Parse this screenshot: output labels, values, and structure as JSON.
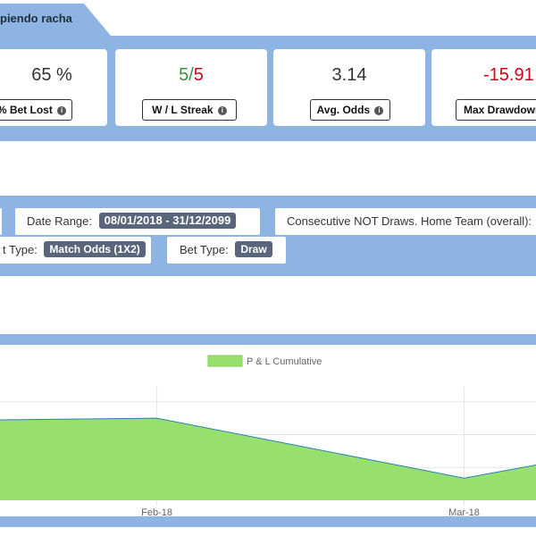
{
  "tab": {
    "label": "piendo racha"
  },
  "stats": [
    {
      "value": "65 %",
      "label": "% Bet Lost"
    },
    {
      "win": "5",
      "sep": "/",
      "loss": "5",
      "label": "W / L Streak"
    },
    {
      "value": "3.14",
      "label": "Avg. Odds"
    },
    {
      "value": "-15.91",
      "label": "Max Drawdown"
    }
  ],
  "filters": {
    "date_range_label": "Date Range:",
    "date_range_value": "08/01/2018 - 31/12/2099",
    "system_label": "Consecutive NOT Draws. Home Team (overall):",
    "market_label": "t Type:",
    "market_value": "Match Odds (1X2)",
    "bet_type_label": "Bet Type:",
    "bet_type_value": "Draw"
  },
  "colors": {
    "band": "#8db4e2",
    "area_fill": "#98e06d",
    "line": "#2a7fb8",
    "negative": "#d0021b",
    "positive": "#3e8e3e"
  },
  "chart_data": {
    "type": "area",
    "legend": "P & L Cumulative",
    "x_tick_labels": [
      "Feb-18",
      "Mar-18"
    ],
    "series": [
      {
        "name": "P & L Cumulative",
        "points": [
          {
            "x": "2018-01-08",
            "y": 0.98
          },
          {
            "x": "2018-02-01",
            "y": 1.0
          },
          {
            "x": "2018-03-20",
            "y": 0.27
          },
          {
            "x": "2018-03-31",
            "y": 0.43
          }
        ]
      }
    ],
    "y_lim": [
      0,
      1.6
    ],
    "grid": true,
    "legend_position": "top"
  }
}
